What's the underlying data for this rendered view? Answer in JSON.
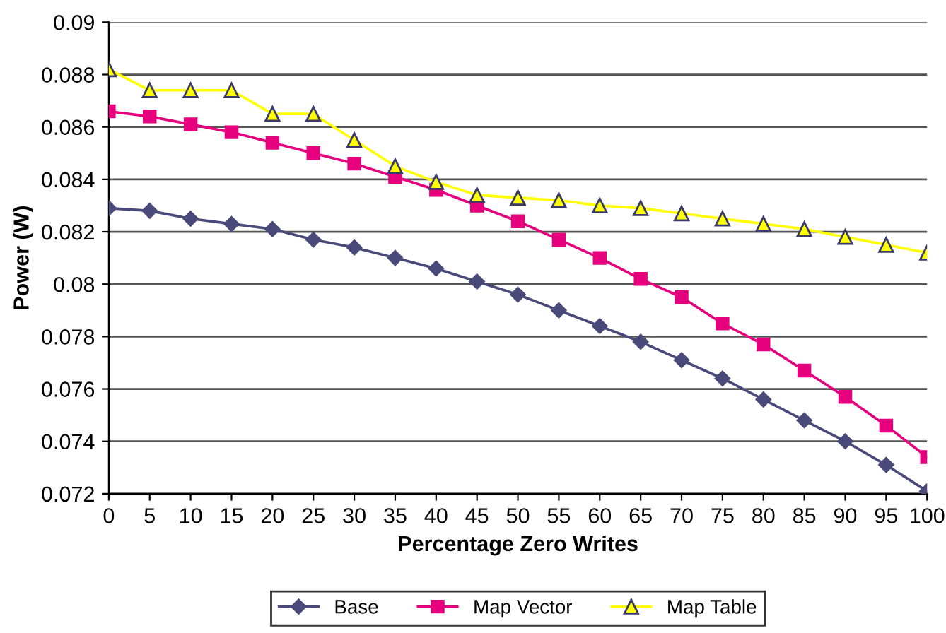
{
  "chart_data": {
    "type": "line",
    "xlabel": "Percentage Zero Writes",
    "ylabel": "Power (W)",
    "categories": [
      "0",
      "5",
      "10",
      "15",
      "20",
      "25",
      "30",
      "35",
      "40",
      "45",
      "50",
      "55",
      "60",
      "65",
      "70",
      "75",
      "80",
      "85",
      "90",
      "95",
      "100"
    ],
    "series": [
      {
        "name": "Base",
        "color": "#4a4a7a",
        "marker": "diamond",
        "values": [
          0.0829,
          0.0828,
          0.0825,
          0.0823,
          0.0821,
          0.0817,
          0.0814,
          0.081,
          0.0806,
          0.0801,
          0.0796,
          0.079,
          0.0784,
          0.0778,
          0.0771,
          0.0764,
          0.0756,
          0.0748,
          0.074,
          0.0731,
          0.0721
        ]
      },
      {
        "name": "Map Vector",
        "color": "#e6007e",
        "marker": "square",
        "values": [
          0.0866,
          0.0864,
          0.0861,
          0.0858,
          0.0854,
          0.085,
          0.0846,
          0.0841,
          0.0836,
          0.083,
          0.0824,
          0.0817,
          0.081,
          0.0802,
          0.0795,
          0.0785,
          0.0777,
          0.0767,
          0.0757,
          0.0746,
          0.0734
        ]
      },
      {
        "name": "Map Table",
        "color": "#ffff00",
        "marker": "triangle",
        "values": [
          0.0882,
          0.0874,
          0.0874,
          0.0874,
          0.0865,
          0.0865,
          0.0855,
          0.0845,
          0.0839,
          0.0834,
          0.0833,
          0.0832,
          0.083,
          0.0829,
          0.0827,
          0.0825,
          0.0823,
          0.0821,
          0.0818,
          0.0815,
          0.0812
        ]
      }
    ],
    "ylim": [
      0.072,
      0.09
    ],
    "yticks": [
      0.072,
      0.074,
      0.076,
      0.078,
      0.08,
      0.082,
      0.084,
      0.086,
      0.088,
      0.09
    ],
    "grid": "y",
    "legend": "bottom"
  }
}
